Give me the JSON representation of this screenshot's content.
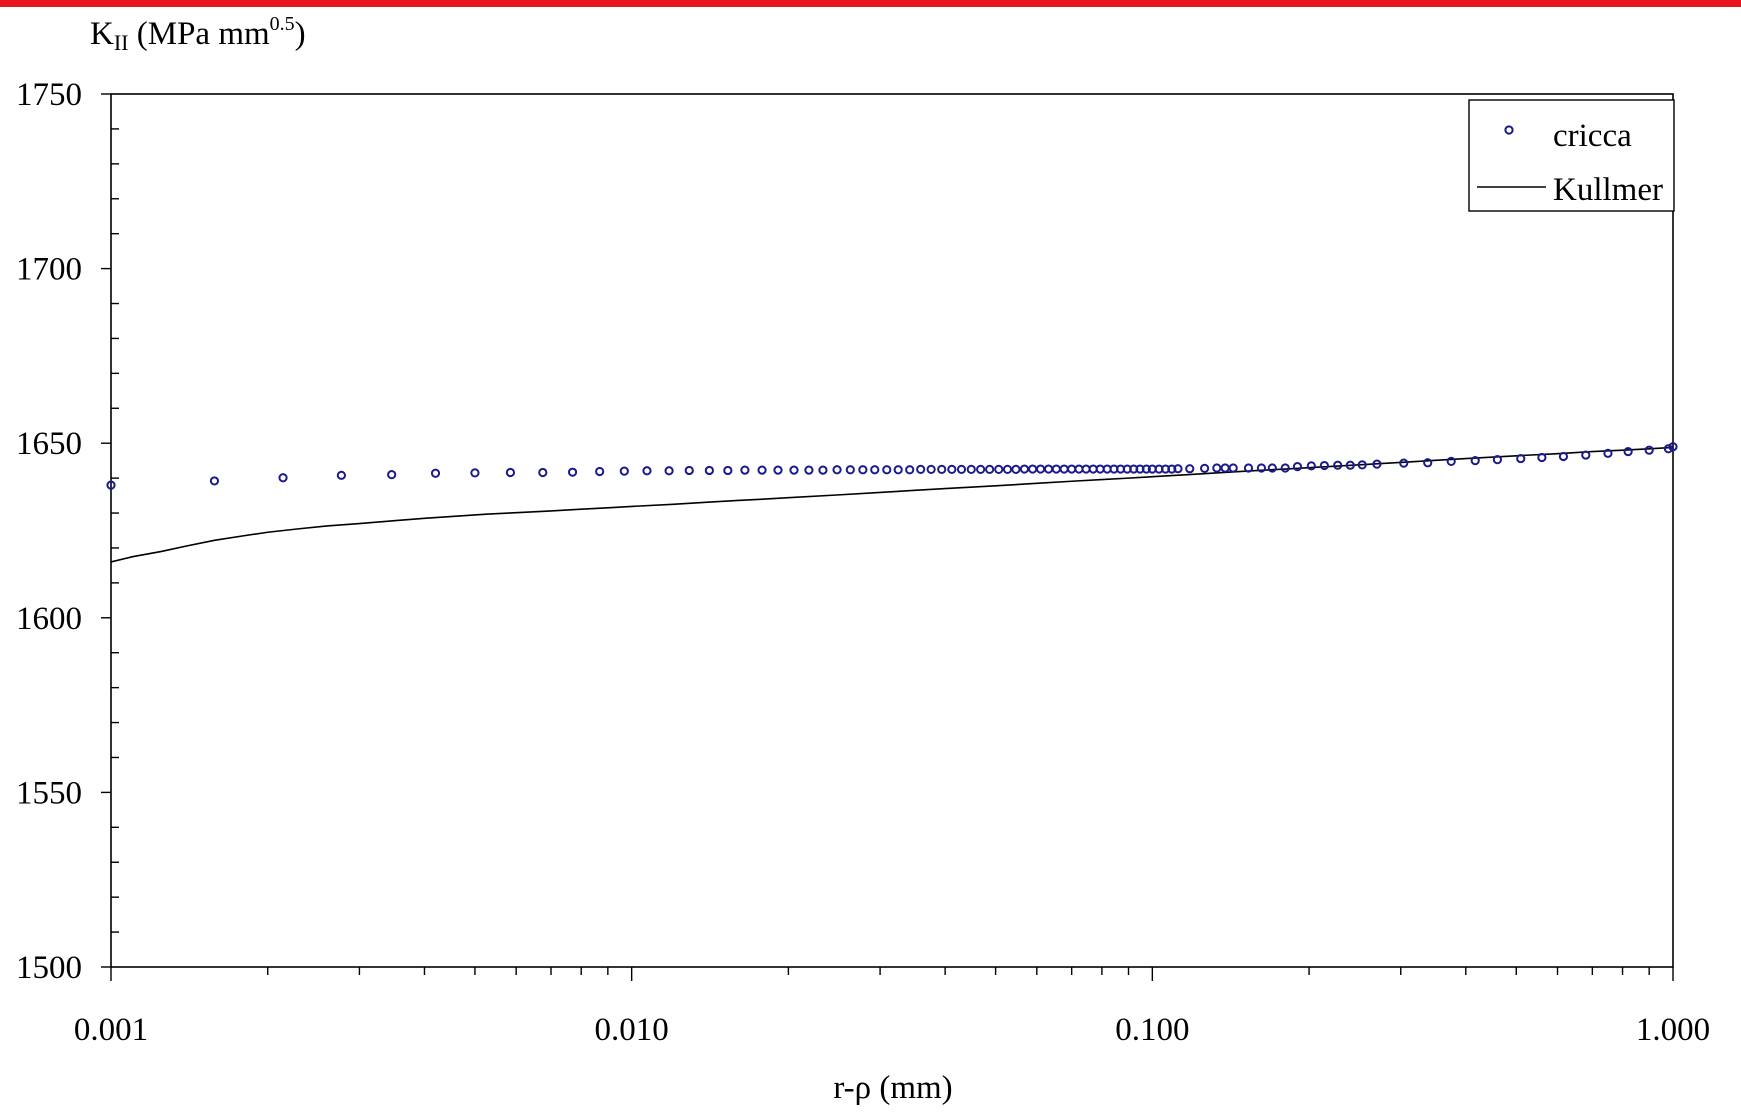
{
  "colors": {
    "top_bar": "#e8141c",
    "marker": "#1a1a8c",
    "line": "#000000",
    "axis": "#000000"
  },
  "chart_data": {
    "type": "scatter",
    "x_scale": "log",
    "xlim": [
      0.001,
      1.0
    ],
    "ylim": [
      1500,
      1750
    ],
    "y_major_step": 50,
    "y_minor_step": 10,
    "grid": false,
    "legend_position": "top-right",
    "ylabel": {
      "symbol": "K",
      "subscript": "II",
      "units": " (MPa mm",
      "exponent": "0.5",
      "close": ")"
    },
    "xlabel": "r-ρ  (mm)",
    "x_ticks": [
      {
        "value": 0.001,
        "label": "0.001"
      },
      {
        "value": 0.01,
        "label": "0.010"
      },
      {
        "value": 0.1,
        "label": "0.100"
      },
      {
        "value": 1.0,
        "label": "1.000"
      }
    ],
    "y_ticks": [
      {
        "value": 1500,
        "label": "1500"
      },
      {
        "value": 1550,
        "label": "1550"
      },
      {
        "value": 1600,
        "label": "1600"
      },
      {
        "value": 1650,
        "label": "1650"
      },
      {
        "value": 1700,
        "label": "1700"
      },
      {
        "value": 1750,
        "label": "1750"
      }
    ],
    "series": [
      {
        "name": "cricca",
        "kind": "markers",
        "points": [
          [
            0.001,
            1638.0
          ],
          [
            0.00158,
            1639.2
          ],
          [
            0.00214,
            1640.1
          ],
          [
            0.00277,
            1640.8
          ],
          [
            0.00346,
            1641.0
          ],
          [
            0.0042,
            1641.4
          ],
          [
            0.005,
            1641.5
          ],
          [
            0.00585,
            1641.6
          ],
          [
            0.00675,
            1641.6
          ],
          [
            0.0077,
            1641.7
          ],
          [
            0.00868,
            1641.9
          ],
          [
            0.00968,
            1642.0
          ],
          [
            0.0107,
            1642.1
          ],
          [
            0.0118,
            1642.1
          ],
          [
            0.0129,
            1642.2
          ],
          [
            0.0141,
            1642.2
          ],
          [
            0.0153,
            1642.2
          ],
          [
            0.0165,
            1642.3
          ],
          [
            0.0178,
            1642.3
          ],
          [
            0.0191,
            1642.3
          ],
          [
            0.0205,
            1642.3
          ],
          [
            0.0219,
            1642.3
          ],
          [
            0.0233,
            1642.3
          ],
          [
            0.0248,
            1642.4
          ],
          [
            0.0263,
            1642.4
          ],
          [
            0.0278,
            1642.4
          ],
          [
            0.0293,
            1642.4
          ],
          [
            0.0309,
            1642.4
          ],
          [
            0.0325,
            1642.4
          ],
          [
            0.0342,
            1642.4
          ],
          [
            0.0359,
            1642.5
          ],
          [
            0.0376,
            1642.5
          ],
          [
            0.0394,
            1642.5
          ],
          [
            0.0412,
            1642.5
          ],
          [
            0.043,
            1642.5
          ],
          [
            0.0449,
            1642.5
          ],
          [
            0.0468,
            1642.5
          ],
          [
            0.0487,
            1642.5
          ],
          [
            0.0507,
            1642.5
          ],
          [
            0.0527,
            1642.5
          ],
          [
            0.0547,
            1642.5
          ],
          [
            0.0568,
            1642.6
          ],
          [
            0.0589,
            1642.6
          ],
          [
            0.061,
            1642.6
          ],
          [
            0.0632,
            1642.6
          ],
          [
            0.0654,
            1642.6
          ],
          [
            0.0677,
            1642.6
          ],
          [
            0.07,
            1642.6
          ],
          [
            0.0723,
            1642.6
          ],
          [
            0.0746,
            1642.6
          ],
          [
            0.077,
            1642.6
          ],
          [
            0.0794,
            1642.6
          ],
          [
            0.0819,
            1642.6
          ],
          [
            0.0844,
            1642.6
          ],
          [
            0.0869,
            1642.6
          ],
          [
            0.0895,
            1642.6
          ],
          [
            0.0921,
            1642.6
          ],
          [
            0.0947,
            1642.6
          ],
          [
            0.0974,
            1642.6
          ],
          [
            0.1,
            1642.6
          ],
          [
            0.103,
            1642.6
          ],
          [
            0.106,
            1642.6
          ],
          [
            0.109,
            1642.6
          ],
          [
            0.112,
            1642.7
          ],
          [
            0.118,
            1642.7
          ],
          [
            0.126,
            1642.8
          ],
          [
            0.133,
            1642.9
          ],
          [
            0.138,
            1642.9
          ],
          [
            0.143,
            1642.9
          ],
          [
            0.153,
            1642.9
          ],
          [
            0.162,
            1642.9
          ],
          [
            0.17,
            1642.9
          ],
          [
            0.18,
            1642.9
          ],
          [
            0.19,
            1643.3
          ],
          [
            0.202,
            1643.5
          ],
          [
            0.214,
            1643.6
          ],
          [
            0.227,
            1643.7
          ],
          [
            0.24,
            1643.7
          ],
          [
            0.253,
            1643.8
          ],
          [
            0.27,
            1644.0
          ],
          [
            0.304,
            1644.3
          ],
          [
            0.338,
            1644.4
          ],
          [
            0.375,
            1644.8
          ],
          [
            0.417,
            1645.0
          ],
          [
            0.46,
            1645.3
          ],
          [
            0.51,
            1645.6
          ],
          [
            0.56,
            1645.9
          ],
          [
            0.616,
            1646.2
          ],
          [
            0.68,
            1646.6
          ],
          [
            0.75,
            1647.1
          ],
          [
            0.82,
            1647.6
          ],
          [
            0.9,
            1648.0
          ],
          [
            0.98,
            1648.4
          ],
          [
            1.0,
            1649.0
          ]
        ]
      },
      {
        "name": "Kullmer",
        "kind": "line",
        "points": [
          [
            0.001,
            1616.0
          ],
          [
            0.0011,
            1617.5
          ],
          [
            0.00125,
            1619.0
          ],
          [
            0.0014,
            1620.6
          ],
          [
            0.00158,
            1622.2
          ],
          [
            0.0018,
            1623.5
          ],
          [
            0.002,
            1624.5
          ],
          [
            0.0023,
            1625.5
          ],
          [
            0.0026,
            1626.3
          ],
          [
            0.003,
            1627.0
          ],
          [
            0.0035,
            1627.8
          ],
          [
            0.004,
            1628.5
          ],
          [
            0.0046,
            1629.1
          ],
          [
            0.0053,
            1629.7
          ],
          [
            0.006,
            1630.1
          ],
          [
            0.007,
            1630.6
          ],
          [
            0.008,
            1631.1
          ],
          [
            0.009,
            1631.5
          ],
          [
            0.01,
            1631.9
          ],
          [
            0.012,
            1632.5
          ],
          [
            0.014,
            1633.1
          ],
          [
            0.016,
            1633.6
          ],
          [
            0.018,
            1634.0
          ],
          [
            0.02,
            1634.4
          ],
          [
            0.025,
            1635.2
          ],
          [
            0.03,
            1635.9
          ],
          [
            0.035,
            1636.5
          ],
          [
            0.04,
            1637.0
          ],
          [
            0.05,
            1637.8
          ],
          [
            0.06,
            1638.5
          ],
          [
            0.07,
            1639.1
          ],
          [
            0.08,
            1639.6
          ],
          [
            0.09,
            1640.0
          ],
          [
            0.1,
            1640.4
          ],
          [
            0.12,
            1641.1
          ],
          [
            0.14,
            1641.7
          ],
          [
            0.16,
            1642.2
          ],
          [
            0.18,
            1642.6
          ],
          [
            0.2,
            1643.0
          ],
          [
            0.25,
            1643.8
          ],
          [
            0.3,
            1644.5
          ],
          [
            0.35,
            1645.1
          ],
          [
            0.4,
            1645.6
          ],
          [
            0.5,
            1646.4
          ],
          [
            0.6,
            1647.0
          ],
          [
            0.7,
            1647.6
          ],
          [
            0.8,
            1648.0
          ],
          [
            0.9,
            1648.4
          ],
          [
            1.0,
            1648.8
          ]
        ]
      }
    ]
  }
}
